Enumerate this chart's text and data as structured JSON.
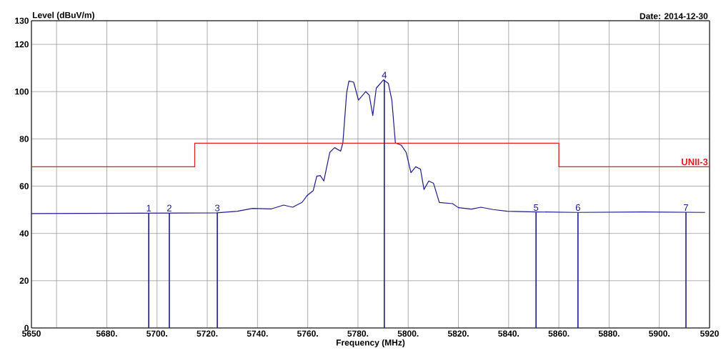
{
  "chart_data": {
    "type": "line",
    "subtitle": "Date: 2014-12-30",
    "xlabel": "Frequency (MHz)",
    "ylabel": "Level (dBuV/m)",
    "xlim": [
      5650,
      5920
    ],
    "ylim": [
      0,
      130
    ],
    "xticks": [
      5650,
      {
        "value": 5660,
        "label": null
      },
      {
        "value": 5680,
        "label": "5680."
      },
      {
        "value": 5700,
        "label": "5700."
      },
      {
        "value": 5720,
        "label": "5720."
      },
      {
        "value": 5740,
        "label": "5740."
      },
      {
        "value": 5760,
        "label": "5760."
      },
      {
        "value": 5780,
        "label": "5780."
      },
      {
        "value": 5800,
        "label": "5800."
      },
      {
        "value": 5820,
        "label": "5820."
      },
      {
        "value": 5840,
        "label": "5840."
      },
      {
        "value": 5860,
        "label": "5860."
      },
      {
        "value": 5880,
        "label": "5880."
      },
      {
        "value": 5900,
        "label": "5900."
      },
      5920
    ],
    "yticks": [
      0,
      20,
      40,
      60,
      80,
      100,
      120,
      130
    ],
    "grid": true,
    "series": [
      {
        "color": "#1c1c8c",
        "x": [
          5650,
          5723.7,
          5732,
          5738,
          5745.6,
          5750.4,
          5754,
          5757.8,
          5759.8,
          5762.2,
          5763.6,
          5765,
          5766.4,
          5768.8,
          5770.7,
          5773.1,
          5774,
          5775.5,
          5776.4,
          5778.3,
          5780.2,
          5783.1,
          5784.5,
          5785.9,
          5787.3,
          5790.2,
          5792.1,
          5793.5,
          5794.9,
          5797.3,
          5799.2,
          5801.1,
          5803,
          5804.9,
          5806.3,
          5808.2,
          5810.1,
          5812.4,
          5817.7,
          5820,
          5825.2,
          5829,
          5833.8,
          5839.5,
          5850.9,
          5867,
          5893.5,
          5918.2
        ],
        "values": [
          48.4,
          48.7,
          49.4,
          50.6,
          50.4,
          52.0,
          51.1,
          53.2,
          56.1,
          58.1,
          64.2,
          64.5,
          62.2,
          74.3,
          76.3,
          74.8,
          78.3,
          99.5,
          104.5,
          104.0,
          96.4,
          100.0,
          98.5,
          89.9,
          101.5,
          105.0,
          103.5,
          96.4,
          78.3,
          77.3,
          74.3,
          65.7,
          68.2,
          67.2,
          58.6,
          62.2,
          61.2,
          53.1,
          52.6,
          50.9,
          50.3,
          51.1,
          50.1,
          49.4,
          49.1,
          48.9,
          49.1,
          48.9
        ]
      },
      {
        "type": "step",
        "name": "UNII-3",
        "color": "#e02020",
        "x": [
          5650,
          5715,
          5860,
          5920
        ],
        "values": [
          68.2,
          78.2,
          68.2,
          68.2
        ]
      },
      {
        "type": "bar",
        "color": "#1c1c8c",
        "x": [
          5696.7,
          5704.9,
          5724.0,
          5790.5,
          5850.9,
          5867.6,
          5910.6
        ],
        "values": [
          48.7,
          48.7,
          48.7,
          105.0,
          48.9,
          48.9,
          48.9
        ]
      }
    ],
    "annotations": [
      {
        "text": "1",
        "x": 5696.7,
        "y": 48.7
      },
      {
        "text": "2",
        "x": 5704.9,
        "y": 48.7
      },
      {
        "text": "3",
        "x": 5724.0,
        "y": 48.7
      },
      {
        "text": "4",
        "x": 5790.5,
        "y": 105.0
      },
      {
        "text": "5",
        "x": 5850.9,
        "y": 48.9
      },
      {
        "text": "6",
        "x": 5867.6,
        "y": 48.9
      },
      {
        "text": "7",
        "x": 5910.6,
        "y": 48.9
      }
    ]
  }
}
